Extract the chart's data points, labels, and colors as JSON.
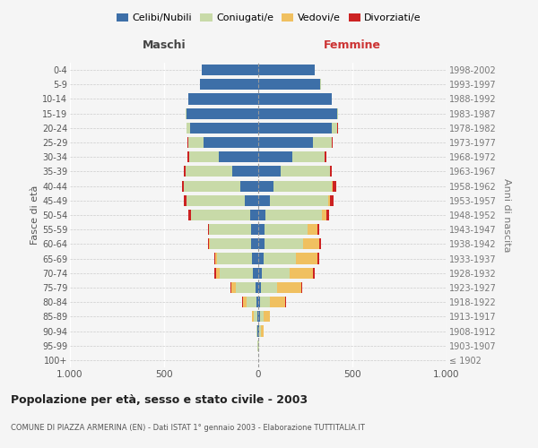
{
  "age_groups": [
    "100+",
    "95-99",
    "90-94",
    "85-89",
    "80-84",
    "75-79",
    "70-74",
    "65-69",
    "60-64",
    "55-59",
    "50-54",
    "45-49",
    "40-44",
    "35-39",
    "30-34",
    "25-29",
    "20-24",
    "15-19",
    "10-14",
    "5-9",
    "0-4"
  ],
  "birth_years": [
    "≤ 1902",
    "1903-1907",
    "1908-1912",
    "1913-1917",
    "1918-1922",
    "1923-1927",
    "1928-1932",
    "1933-1937",
    "1938-1942",
    "1943-1947",
    "1948-1952",
    "1953-1957",
    "1958-1962",
    "1963-1967",
    "1968-1972",
    "1973-1977",
    "1978-1982",
    "1983-1987",
    "1988-1992",
    "1993-1997",
    "1998-2002"
  ],
  "males": {
    "celibi": [
      2,
      2,
      3,
      5,
      8,
      15,
      30,
      35,
      40,
      40,
      45,
      70,
      95,
      140,
      210,
      290,
      360,
      380,
      370,
      310,
      300
    ],
    "coniugati": [
      0,
      2,
      5,
      20,
      55,
      105,
      175,
      185,
      215,
      220,
      310,
      310,
      300,
      245,
      155,
      80,
      20,
      5,
      2,
      1,
      0
    ],
    "vedovi": [
      0,
      0,
      3,
      8,
      20,
      25,
      20,
      8,
      5,
      3,
      2,
      2,
      1,
      1,
      0,
      0,
      0,
      0,
      0,
      0,
      0
    ],
    "divorziati": [
      0,
      0,
      0,
      0,
      2,
      5,
      10,
      5,
      5,
      5,
      15,
      15,
      10,
      10,
      10,
      5,
      2,
      1,
      0,
      0,
      0
    ]
  },
  "females": {
    "nubili": [
      2,
      2,
      5,
      8,
      10,
      15,
      20,
      30,
      35,
      35,
      40,
      60,
      80,
      120,
      180,
      290,
      390,
      420,
      390,
      330,
      300
    ],
    "coniugate": [
      0,
      2,
      8,
      20,
      50,
      85,
      145,
      170,
      205,
      225,
      300,
      310,
      310,
      260,
      170,
      100,
      30,
      5,
      2,
      1,
      0
    ],
    "vedove": [
      0,
      2,
      15,
      35,
      85,
      130,
      125,
      115,
      85,
      55,
      20,
      12,
      5,
      2,
      1,
      0,
      0,
      0,
      0,
      0,
      0
    ],
    "divorziate": [
      0,
      0,
      0,
      0,
      2,
      5,
      8,
      10,
      10,
      8,
      15,
      20,
      20,
      10,
      10,
      5,
      2,
      1,
      0,
      0,
      0
    ]
  },
  "colors": {
    "celibi": "#3d6fa8",
    "coniugati": "#c8daa8",
    "vedovi": "#f0c060",
    "divorziati": "#cc2222"
  },
  "xlim": 1000,
  "title": "Popolazione per età, sesso e stato civile - 2003",
  "subtitle": "COMUNE DI PIAZZA ARMERINA (EN) - Dati ISTAT 1° gennaio 2003 - Elaborazione TUTTITALIA.IT",
  "ylabel_left": "Fasce di età",
  "ylabel_right": "Anni di nascita",
  "xlabel_left": "Maschi",
  "xlabel_right": "Femmine",
  "legend_labels": [
    "Celibi/Nubili",
    "Coniugati/e",
    "Vedovi/e",
    "Divorziati/e"
  ],
  "bg_color": "#f5f5f5"
}
